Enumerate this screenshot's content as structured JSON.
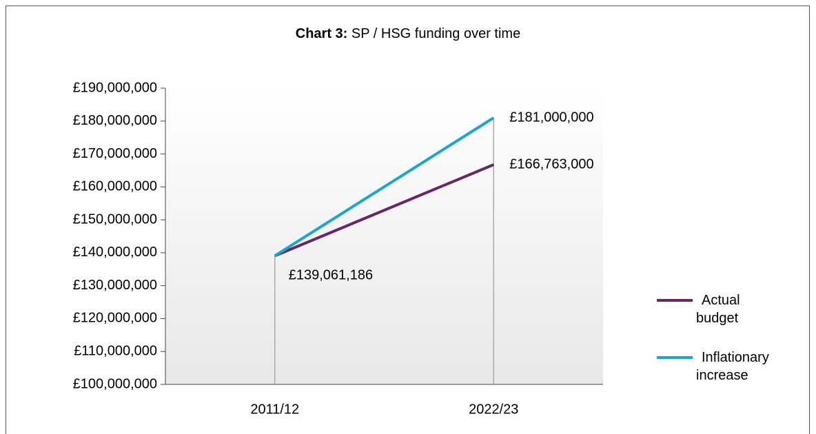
{
  "chart_data": {
    "type": "line",
    "title": {
      "label": "Chart 3:",
      "text": "SP / HSG funding over time"
    },
    "categories": [
      "2011/12",
      "2022/23"
    ],
    "series": [
      {
        "name": "Actual budget",
        "color": "#6b2566",
        "values": [
          139061186,
          166763000
        ],
        "value_labels": [
          "£139,061,186",
          "£166,763,000"
        ]
      },
      {
        "name": "Inflationary increase",
        "color": "#1ba6cc",
        "values": [
          139061186,
          181000000
        ],
        "value_labels": [
          null,
          "£181,000,000"
        ]
      }
    ],
    "ylim": [
      100000000,
      190000000
    ],
    "yticks": [
      {
        "value": 100000000,
        "label": "£100,000,000"
      },
      {
        "value": 110000000,
        "label": "£110,000,000"
      },
      {
        "value": 120000000,
        "label": "£120,000,000"
      },
      {
        "value": 130000000,
        "label": "£130,000,000"
      },
      {
        "value": 140000000,
        "label": "£140,000,000"
      },
      {
        "value": 150000000,
        "label": "£150,000,000"
      },
      {
        "value": 160000000,
        "label": "£160,000,000"
      },
      {
        "value": 170000000,
        "label": "£170,000,000"
      },
      {
        "value": 180000000,
        "label": "£180,000,000"
      },
      {
        "value": 190000000,
        "label": "£190,000,000"
      }
    ],
    "legend": "right",
    "drop_lines": true
  }
}
